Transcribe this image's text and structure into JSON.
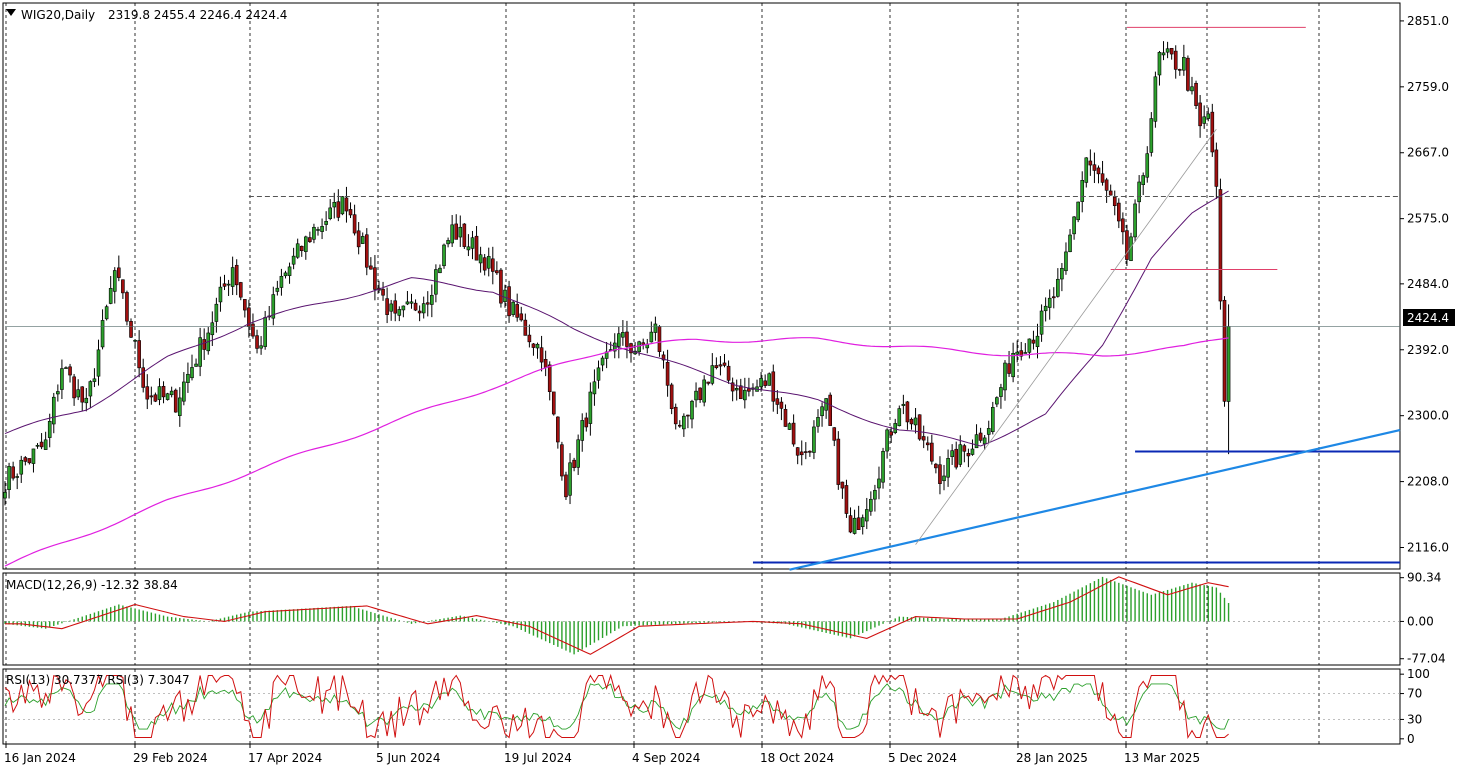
{
  "title": {
    "symbol": "WIG20,Daily",
    "ohlc": "2319.8 2455.4 2246.4 2424.4"
  },
  "price_tag": "2424.4",
  "colors": {
    "bull": "#2ca02c",
    "bear": "#a01010",
    "ma_short": "#5a1470",
    "ma_long": "#e020e0",
    "trend_blue": "#1e88e5",
    "level_blue": "#0a28b4",
    "level_red": "#e0406a",
    "macd_hist": "#2ca02c",
    "macd_signal": "#d01010",
    "rsi_fast": "#d01010",
    "rsi_slow": "#2ca02c"
  },
  "main_panel": {
    "y_ticks": [
      "2851.0",
      "2759.0",
      "2667.0",
      "2575.0",
      "2484.0",
      "2392.0",
      "2300.0",
      "2208.0",
      "2116.0"
    ],
    "y_tick_values": [
      2851,
      2759,
      2667,
      2575,
      2484,
      2392,
      2300,
      2208,
      2116
    ],
    "ylim": [
      2086,
      2876
    ]
  },
  "macd_panel": {
    "label": "MACD(12,26,9) -12.32 38.84",
    "y_ticks": [
      "90.34",
      "0.00",
      "-77.04"
    ],
    "y_tick_values": [
      90.34,
      0,
      -77.04
    ],
    "ylim": [
      -90,
      100
    ]
  },
  "rsi_panel": {
    "label": "RSI(13) 30.7377  RSI(3) 7.3047",
    "y_ticks": [
      "100",
      "70",
      "30",
      "0"
    ],
    "y_tick_values": [
      100,
      70,
      30,
      0
    ],
    "ylim": [
      -8,
      108
    ]
  },
  "x_axis": {
    "labels": [
      "16 Jan 2024",
      "29 Feb 2024",
      "17 Apr 2024",
      "5 Jun 2024",
      "19 Jul 2024",
      "4 Sep 2024",
      "18 Oct 2024",
      "5 Dec 2024",
      "28 Jan 2025",
      "13 Mar 2025"
    ],
    "label_bar_index": [
      0,
      32,
      66,
      100,
      132,
      162,
      192,
      222,
      254,
      286
    ]
  },
  "chart_data": {
    "type": "candlestick",
    "title": "WIG20,Daily",
    "bar_count": 308,
    "close_anchors": [
      {
        "bar": 0,
        "close": 2210
      },
      {
        "bar": 10,
        "close": 2260
      },
      {
        "bar": 14,
        "close": 2370
      },
      {
        "bar": 20,
        "close": 2310
      },
      {
        "bar": 27,
        "close": 2500
      },
      {
        "bar": 35,
        "close": 2330
      },
      {
        "bar": 42,
        "close": 2320
      },
      {
        "bar": 50,
        "close": 2420
      },
      {
        "bar": 56,
        "close": 2510
      },
      {
        "bar": 62,
        "close": 2390
      },
      {
        "bar": 68,
        "close": 2490
      },
      {
        "bar": 76,
        "close": 2560
      },
      {
        "bar": 84,
        "close": 2600
      },
      {
        "bar": 90,
        "close": 2500
      },
      {
        "bar": 96,
        "close": 2430
      },
      {
        "bar": 104,
        "close": 2470
      },
      {
        "bar": 110,
        "close": 2560
      },
      {
        "bar": 118,
        "close": 2520
      },
      {
        "bar": 124,
        "close": 2450
      },
      {
        "bar": 132,
        "close": 2390
      },
      {
        "bar": 138,
        "close": 2200
      },
      {
        "bar": 144,
        "close": 2320
      },
      {
        "bar": 150,
        "close": 2410
      },
      {
        "bar": 156,
        "close": 2390
      },
      {
        "bar": 160,
        "close": 2420
      },
      {
        "bar": 166,
        "close": 2270
      },
      {
        "bar": 174,
        "close": 2370
      },
      {
        "bar": 182,
        "close": 2330
      },
      {
        "bar": 188,
        "close": 2350
      },
      {
        "bar": 196,
        "close": 2240
      },
      {
        "bar": 202,
        "close": 2310
      },
      {
        "bar": 208,
        "close": 2130
      },
      {
        "bar": 214,
        "close": 2210
      },
      {
        "bar": 220,
        "close": 2320
      },
      {
        "bar": 226,
        "close": 2260
      },
      {
        "bar": 230,
        "close": 2220
      },
      {
        "bar": 236,
        "close": 2250
      },
      {
        "bar": 242,
        "close": 2290
      },
      {
        "bar": 248,
        "close": 2390
      },
      {
        "bar": 254,
        "close": 2420
      },
      {
        "bar": 260,
        "close": 2490
      },
      {
        "bar": 266,
        "close": 2660
      },
      {
        "bar": 272,
        "close": 2600
      },
      {
        "bar": 276,
        "close": 2520
      },
      {
        "bar": 280,
        "close": 2640
      },
      {
        "bar": 284,
        "close": 2800
      },
      {
        "bar": 290,
        "close": 2790
      },
      {
        "bar": 294,
        "close": 2700
      },
      {
        "bar": 296,
        "close": 2720
      },
      {
        "bar": 298,
        "close": 2620
      },
      {
        "bar": 299,
        "close": 2460
      },
      {
        "bar": 300,
        "close": 2320
      },
      {
        "bar": 301,
        "close": 2424.4
      }
    ],
    "ma_short_anchors": [
      {
        "bar": 0,
        "v": 2275
      },
      {
        "bar": 20,
        "v": 2310
      },
      {
        "bar": 40,
        "v": 2380
      },
      {
        "bar": 60,
        "v": 2430
      },
      {
        "bar": 80,
        "v": 2460
      },
      {
        "bar": 100,
        "v": 2490
      },
      {
        "bar": 120,
        "v": 2475
      },
      {
        "bar": 140,
        "v": 2420
      },
      {
        "bar": 160,
        "v": 2380
      },
      {
        "bar": 180,
        "v": 2345
      },
      {
        "bar": 200,
        "v": 2320
      },
      {
        "bar": 220,
        "v": 2280
      },
      {
        "bar": 240,
        "v": 2260
      },
      {
        "bar": 256,
        "v": 2300
      },
      {
        "bar": 270,
        "v": 2400
      },
      {
        "bar": 282,
        "v": 2520
      },
      {
        "bar": 292,
        "v": 2580
      },
      {
        "bar": 301,
        "v": 2615
      }
    ],
    "ma_long_anchors": [
      {
        "bar": 0,
        "v": 2090
      },
      {
        "bar": 40,
        "v": 2180
      },
      {
        "bar": 80,
        "v": 2260
      },
      {
        "bar": 120,
        "v": 2340
      },
      {
        "bar": 150,
        "v": 2395
      },
      {
        "bar": 170,
        "v": 2405
      },
      {
        "bar": 200,
        "v": 2406
      },
      {
        "bar": 230,
        "v": 2392
      },
      {
        "bar": 250,
        "v": 2385
      },
      {
        "bar": 270,
        "v": 2385
      },
      {
        "bar": 290,
        "v": 2395
      },
      {
        "bar": 301,
        "v": 2410
      }
    ],
    "levels": [
      {
        "value": 2842,
        "from_bar": 276,
        "to_bar": 320,
        "color": "level_red",
        "style": "solid"
      },
      {
        "value": 2606,
        "from_bar": 60,
        "to_bar": 345,
        "color": "ma_short",
        "style": "dashed"
      },
      {
        "value": 2504,
        "from_bar": 272,
        "to_bar": 313,
        "color": "level_red",
        "style": "solid"
      },
      {
        "value": 2424.4,
        "from_bar": 0,
        "to_bar": 345,
        "color": "ma_short",
        "style": "thin"
      },
      {
        "value": 2250,
        "from_bar": 278,
        "to_bar": 345,
        "color": "level_blue",
        "style": "solid"
      },
      {
        "value": 2095,
        "from_bar": 184,
        "to_bar": 345,
        "color": "level_blue",
        "style": "solid"
      }
    ],
    "trendlines": [
      {
        "x1_bar": 193,
        "y1": 2085,
        "x2_bar": 345,
        "y2": 2280,
        "color": "trend_blue"
      },
      {
        "x1_bar": 224,
        "y1": 2120,
        "x2_bar": 298,
        "y2": 2700,
        "color": "gray"
      }
    ],
    "macd_anchors": [
      {
        "bar": 0,
        "v": -5
      },
      {
        "bar": 10,
        "v": -15
      },
      {
        "bar": 28,
        "v": 35
      },
      {
        "bar": 40,
        "v": 10
      },
      {
        "bar": 50,
        "v": 0
      },
      {
        "bar": 60,
        "v": 20
      },
      {
        "bar": 85,
        "v": 32
      },
      {
        "bar": 100,
        "v": -5
      },
      {
        "bar": 112,
        "v": 12
      },
      {
        "bar": 125,
        "v": -10
      },
      {
        "bar": 140,
        "v": -68
      },
      {
        "bar": 152,
        "v": -10
      },
      {
        "bar": 165,
        "v": -5
      },
      {
        "bar": 180,
        "v": 0
      },
      {
        "bar": 192,
        "v": -5
      },
      {
        "bar": 208,
        "v": -35
      },
      {
        "bar": 220,
        "v": 10
      },
      {
        "bar": 232,
        "v": 5
      },
      {
        "bar": 245,
        "v": 5
      },
      {
        "bar": 258,
        "v": 40
      },
      {
        "bar": 270,
        "v": 92
      },
      {
        "bar": 282,
        "v": 55
      },
      {
        "bar": 292,
        "v": 80
      },
      {
        "bar": 298,
        "v": 70
      },
      {
        "bar": 301,
        "v": 38
      }
    ],
    "rsi_fast_value": 7.3047,
    "rsi_slow_value": 30.7377
  }
}
